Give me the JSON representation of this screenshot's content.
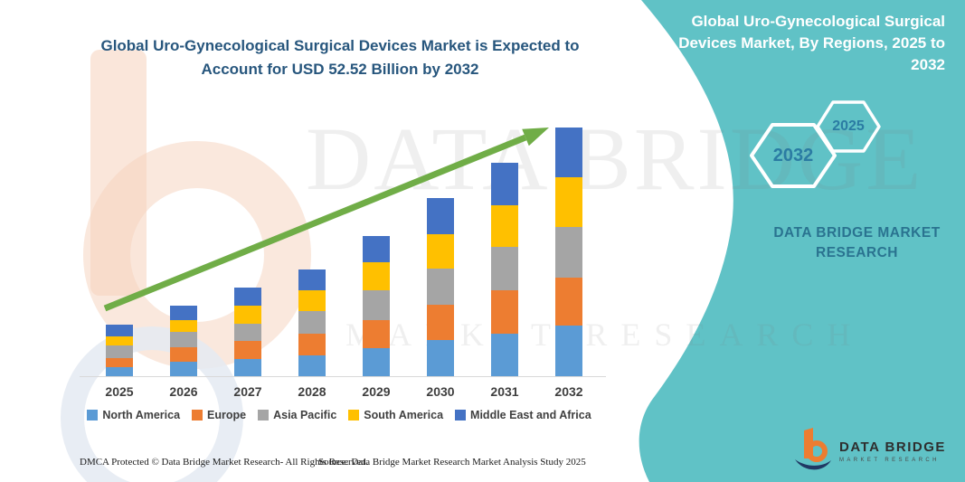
{
  "header": {
    "title": "Global Uro-Gynecological Surgical Devices Market is Expected to Account for USD 52.52 Billion by 2032"
  },
  "chart_data": {
    "type": "bar",
    "stacked": true,
    "title": "Global Uro-Gynecological Surgical Devices Market, By Regions, 2025 to 2032",
    "unit": "USD Billion",
    "categories": [
      "2025",
      "2026",
      "2027",
      "2028",
      "2029",
      "2030",
      "2031",
      "2032"
    ],
    "series": [
      {
        "name": "North America",
        "color": "#5B9BD5",
        "values": [
          2.0,
          3.1,
          3.6,
          4.4,
          5.9,
          7.7,
          9.0,
          10.7
        ]
      },
      {
        "name": "Europe",
        "color": "#ED7D31",
        "values": [
          1.8,
          3.0,
          3.8,
          4.6,
          5.9,
          7.4,
          9.2,
          10.2
        ]
      },
      {
        "name": "Asia Pacific",
        "color": "#A5A5A5",
        "values": [
          2.7,
          3.2,
          3.7,
          4.7,
          6.3,
          7.6,
          9.1,
          10.7
        ]
      },
      {
        "name": "South America",
        "color": "#FFC000",
        "values": [
          1.9,
          2.5,
          3.9,
          4.4,
          6.0,
          7.3,
          8.8,
          10.5
        ]
      },
      {
        "name": "Middle East and Africa",
        "color": "#4472C4",
        "values": [
          2.5,
          3.1,
          3.7,
          4.4,
          5.5,
          7.6,
          8.9,
          10.4
        ]
      }
    ],
    "totals": [
      10.9,
      14.9,
      18.7,
      22.5,
      29.6,
      37.6,
      45.0,
      52.52
    ],
    "ylim": [
      0,
      55
    ],
    "axis_labels_hidden": true,
    "legend_position": "bottom",
    "trendline": true,
    "trend_color": "#70AD47"
  },
  "side_panel": {
    "title": "Global Uro-Gynecological Surgical Devices Market, By Regions, 2025 to 2032",
    "hexagons": [
      {
        "label": "2032"
      },
      {
        "label": "2025"
      }
    ],
    "brand_text": "DATA BRIDGE MARKET RESEARCH",
    "accent_color": "#60C2C6"
  },
  "corner_logo": {
    "name": "DATA BRIDGE",
    "tagline": "MARKET RESEARCH"
  },
  "watermark": {
    "line1": "DATA BRIDGE",
    "line2": "MARKET RESEARCH"
  },
  "footer": {
    "dmca": "DMCA Protected © Data Bridge Market Research-  All Rights Reserved.",
    "source": "Source: Data Bridge Market Research  Market Analysis Study 2025"
  }
}
